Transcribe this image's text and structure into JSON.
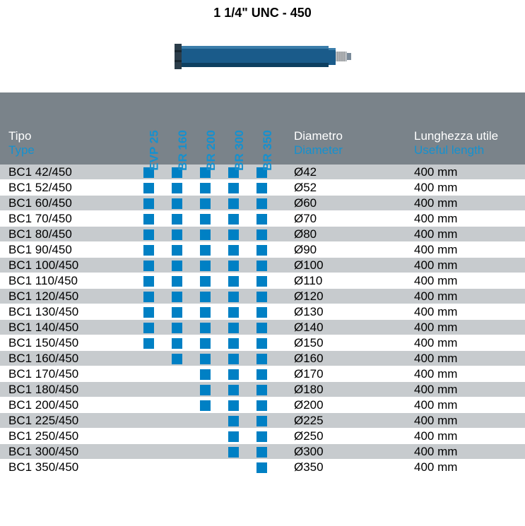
{
  "title": "1 1/4\" UNC - 450",
  "image": {
    "body_color": "#1a5b8a",
    "segment_color": "#2b3d4a",
    "thread_color": "#b8bcc0",
    "tip_color": "#7a8a99"
  },
  "headers": {
    "type_it": "Tipo",
    "type_en": "Type",
    "diameter_it": "Diametro",
    "diameter_en": "Diameter",
    "length_it": "Lunghezza utile",
    "length_en": "Useful length",
    "compat_label_color": "#1591cf"
  },
  "compat_cols": [
    "EVP 25",
    "BR 160",
    "BR 200",
    "BR 300",
    "BR 350"
  ],
  "colors": {
    "header_bg": "#7a838a",
    "row_odd_bg": "#c7cbce",
    "row_even_bg": "#ffffff",
    "square": "#0080c4",
    "en_text": "#1591cf"
  },
  "rows": [
    {
      "type": "BC1 42/450",
      "c": [
        1,
        1,
        1,
        1,
        1
      ],
      "d": "Ø42",
      "l": "400 mm"
    },
    {
      "type": "BC1 52/450",
      "c": [
        1,
        1,
        1,
        1,
        1
      ],
      "d": "Ø52",
      "l": "400 mm"
    },
    {
      "type": "BC1 60/450",
      "c": [
        1,
        1,
        1,
        1,
        1
      ],
      "d": "Ø60",
      "l": "400 mm"
    },
    {
      "type": "BC1 70/450",
      "c": [
        1,
        1,
        1,
        1,
        1
      ],
      "d": "Ø70",
      "l": "400 mm"
    },
    {
      "type": "BC1 80/450",
      "c": [
        1,
        1,
        1,
        1,
        1
      ],
      "d": "Ø80",
      "l": "400 mm"
    },
    {
      "type": "BC1 90/450",
      "c": [
        1,
        1,
        1,
        1,
        1
      ],
      "d": "Ø90",
      "l": "400 mm"
    },
    {
      "type": "BC1 100/450",
      "c": [
        1,
        1,
        1,
        1,
        1
      ],
      "d": "Ø100",
      "l": "400 mm"
    },
    {
      "type": "BC1 110/450",
      "c": [
        1,
        1,
        1,
        1,
        1
      ],
      "d": "Ø110",
      "l": "400 mm"
    },
    {
      "type": "BC1 120/450",
      "c": [
        1,
        1,
        1,
        1,
        1
      ],
      "d": "Ø120",
      "l": "400 mm"
    },
    {
      "type": "BC1 130/450",
      "c": [
        1,
        1,
        1,
        1,
        1
      ],
      "d": "Ø130",
      "l": "400 mm"
    },
    {
      "type": "BC1 140/450",
      "c": [
        1,
        1,
        1,
        1,
        1
      ],
      "d": "Ø140",
      "l": "400 mm"
    },
    {
      "type": "BC1 150/450",
      "c": [
        1,
        1,
        1,
        1,
        1
      ],
      "d": "Ø150",
      "l": "400 mm"
    },
    {
      "type": "BC1 160/450",
      "c": [
        0,
        1,
        1,
        1,
        1
      ],
      "d": "Ø160",
      "l": "400 mm"
    },
    {
      "type": "BC1 170/450",
      "c": [
        0,
        0,
        1,
        1,
        1
      ],
      "d": "Ø170",
      "l": "400 mm"
    },
    {
      "type": "BC1 180/450",
      "c": [
        0,
        0,
        1,
        1,
        1
      ],
      "d": "Ø180",
      "l": "400 mm"
    },
    {
      "type": "BC1 200/450",
      "c": [
        0,
        0,
        1,
        1,
        1
      ],
      "d": "Ø200",
      "l": "400 mm"
    },
    {
      "type": "BC1 225/450",
      "c": [
        0,
        0,
        0,
        1,
        1
      ],
      "d": "Ø225",
      "l": "400 mm"
    },
    {
      "type": "BC1 250/450",
      "c": [
        0,
        0,
        0,
        1,
        1
      ],
      "d": "Ø250",
      "l": "400 mm"
    },
    {
      "type": "BC1 300/450",
      "c": [
        0,
        0,
        0,
        1,
        1
      ],
      "d": "Ø300",
      "l": "400 mm"
    },
    {
      "type": "BC1 350/450",
      "c": [
        0,
        0,
        0,
        0,
        1
      ],
      "d": "Ø350",
      "l": "400 mm"
    }
  ]
}
